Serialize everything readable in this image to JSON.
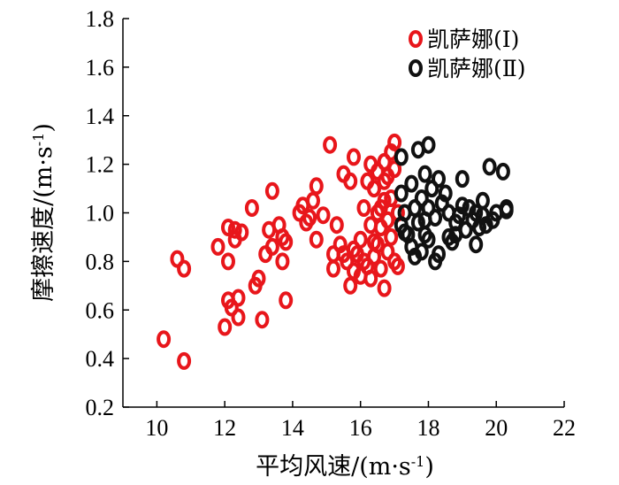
{
  "chart_data": {
    "type": "scatter",
    "title": "",
    "xlabel_main": "平均风速/(m·s",
    "xlabel_sup": "-1",
    "xlabel_close": ")",
    "ylabel_main": "摩擦速度/(m·s",
    "ylabel_sup": "-1",
    "ylabel_close": ")",
    "xlim": [
      9,
      22
    ],
    "ylim": [
      0.2,
      1.8
    ],
    "xticks": [
      10,
      12,
      14,
      16,
      18,
      20,
      22
    ],
    "yticks": [
      0.2,
      0.4,
      0.6,
      0.8,
      1.0,
      1.2,
      1.4,
      1.6,
      1.8
    ],
    "xtick_labels": [
      "10",
      "12",
      "14",
      "16",
      "18",
      "20",
      "22"
    ],
    "ytick_labels": [
      "0.2",
      "0.4",
      "0.6",
      "0.8",
      "1.0",
      "1.2",
      "1.4",
      "1.6",
      "1.8"
    ],
    "legend_position": "top-right",
    "series": [
      {
        "name": "凯萨娜(Ⅰ)",
        "color": "#e8161b",
        "points": [
          [
            10.2,
            0.48
          ],
          [
            10.8,
            0.39
          ],
          [
            10.6,
            0.81
          ],
          [
            10.8,
            0.77
          ],
          [
            11.8,
            0.86
          ],
          [
            12.0,
            0.53
          ],
          [
            12.1,
            0.94
          ],
          [
            12.1,
            0.8
          ],
          [
            12.1,
            0.64
          ],
          [
            12.2,
            0.61
          ],
          [
            12.3,
            0.89
          ],
          [
            12.3,
            0.93
          ],
          [
            12.4,
            0.65
          ],
          [
            12.4,
            0.57
          ],
          [
            12.5,
            0.92
          ],
          [
            12.8,
            1.02
          ],
          [
            12.9,
            0.7
          ],
          [
            13.0,
            0.73
          ],
          [
            13.1,
            0.56
          ],
          [
            13.2,
            0.83
          ],
          [
            13.3,
            0.93
          ],
          [
            13.4,
            1.09
          ],
          [
            13.4,
            0.86
          ],
          [
            13.6,
            0.95
          ],
          [
            13.7,
            0.8
          ],
          [
            13.7,
            0.9
          ],
          [
            13.8,
            0.88
          ],
          [
            13.8,
            0.64
          ],
          [
            14.2,
            1.0
          ],
          [
            14.3,
            1.03
          ],
          [
            14.4,
            0.96
          ],
          [
            14.5,
            0.98
          ],
          [
            14.6,
            1.05
          ],
          [
            14.7,
            0.89
          ],
          [
            14.7,
            1.11
          ],
          [
            14.9,
            0.99
          ],
          [
            15.1,
            1.28
          ],
          [
            15.2,
            0.83
          ],
          [
            15.2,
            0.77
          ],
          [
            15.3,
            0.95
          ],
          [
            15.4,
            0.87
          ],
          [
            15.5,
            0.83
          ],
          [
            15.5,
            1.16
          ],
          [
            15.6,
            0.8
          ],
          [
            15.7,
            1.13
          ],
          [
            15.7,
            0.7
          ],
          [
            15.8,
            0.76
          ],
          [
            15.8,
            0.85
          ],
          [
            15.8,
            1.23
          ],
          [
            15.9,
            0.83
          ],
          [
            16.0,
            0.74
          ],
          [
            16.0,
            0.89
          ],
          [
            16.1,
            0.8
          ],
          [
            16.1,
            1.02
          ],
          [
            16.2,
            1.13
          ],
          [
            16.2,
            0.78
          ],
          [
            16.3,
            1.2
          ],
          [
            16.3,
            0.73
          ],
          [
            16.4,
            0.88
          ],
          [
            16.4,
            1.1
          ],
          [
            16.4,
            0.82
          ],
          [
            16.5,
            1.0
          ],
          [
            16.5,
            1.17
          ],
          [
            16.6,
            0.94
          ],
          [
            16.6,
            0.77
          ],
          [
            16.7,
            1.21
          ],
          [
            16.7,
            0.69
          ],
          [
            16.7,
            1.05
          ],
          [
            16.8,
            0.84
          ],
          [
            16.8,
            1.15
          ],
          [
            16.8,
            0.97
          ],
          [
            16.9,
            1.25
          ],
          [
            16.9,
            0.9
          ],
          [
            17.0,
            1.29
          ],
          [
            17.0,
            0.8
          ],
          [
            17.0,
            1.18
          ],
          [
            17.1,
            1.0
          ],
          [
            17.1,
            0.78
          ],
          [
            16.6,
            1.02
          ],
          [
            16.9,
            1.06
          ],
          [
            16.5,
            0.87
          ],
          [
            16.3,
            0.95
          ],
          [
            16.7,
            1.13
          ]
        ]
      },
      {
        "name": "凯萨娜(Ⅱ)",
        "color": "#111111",
        "points": [
          [
            17.2,
            1.23
          ],
          [
            17.2,
            0.95
          ],
          [
            17.2,
            1.08
          ],
          [
            17.3,
            1.0
          ],
          [
            17.4,
            0.91
          ],
          [
            17.5,
            1.12
          ],
          [
            17.5,
            0.86
          ],
          [
            17.6,
            1.02
          ],
          [
            17.6,
            0.82
          ],
          [
            17.7,
            1.26
          ],
          [
            17.7,
            0.96
          ],
          [
            17.8,
            1.06
          ],
          [
            17.8,
            0.84
          ],
          [
            17.9,
            1.16
          ],
          [
            17.9,
            0.91
          ],
          [
            18.0,
            1.28
          ],
          [
            18.0,
            1.02
          ],
          [
            18.0,
            0.89
          ],
          [
            18.1,
            1.1
          ],
          [
            18.2,
            0.8
          ],
          [
            18.2,
            0.98
          ],
          [
            18.3,
            1.14
          ],
          [
            18.3,
            0.83
          ],
          [
            18.4,
            1.04
          ],
          [
            18.5,
            1.08
          ],
          [
            18.6,
            0.9
          ],
          [
            18.7,
            0.88
          ],
          [
            18.8,
            0.96
          ],
          [
            18.8,
            0.91
          ],
          [
            18.9,
            0.99
          ],
          [
            19.0,
            1.14
          ],
          [
            19.0,
            1.03
          ],
          [
            19.1,
            0.93
          ],
          [
            19.2,
            1.02
          ],
          [
            19.3,
            0.97
          ],
          [
            19.4,
            0.87
          ],
          [
            19.4,
            1.0
          ],
          [
            19.5,
            0.94
          ],
          [
            19.6,
            1.05
          ],
          [
            19.6,
            0.99
          ],
          [
            19.7,
            0.95
          ],
          [
            19.8,
            1.19
          ],
          [
            19.9,
            0.97
          ],
          [
            20.0,
            1.0
          ],
          [
            20.2,
            1.17
          ],
          [
            20.3,
            1.01
          ],
          [
            20.3,
            1.02
          ],
          [
            17.3,
            0.92
          ],
          [
            17.9,
            0.97
          ],
          [
            18.6,
            1.0
          ]
        ]
      }
    ]
  }
}
